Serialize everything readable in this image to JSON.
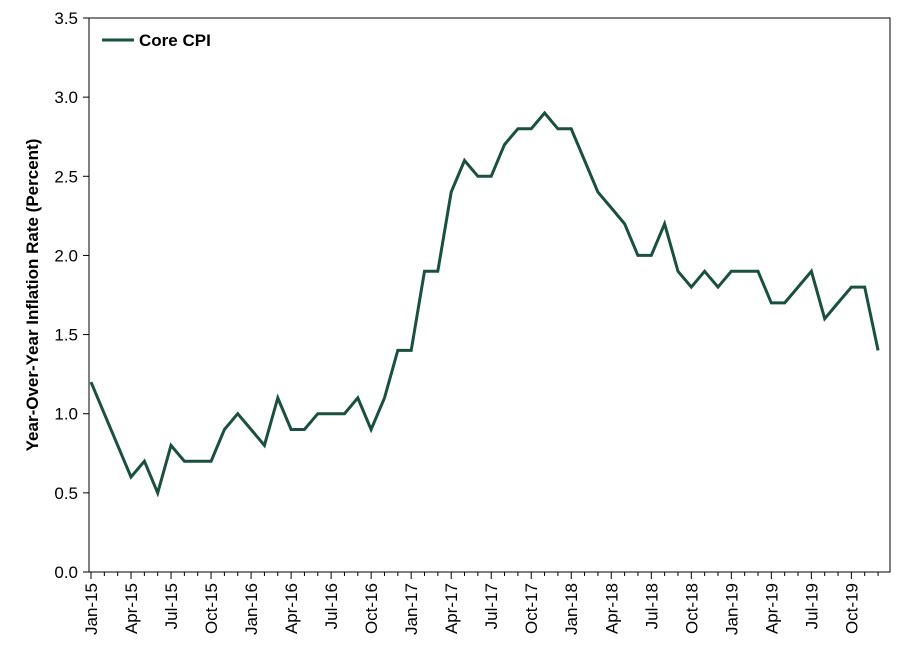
{
  "chart_data": {
    "type": "line",
    "title": "",
    "ylabel": "Year-Over-Year Inflation Rate (Percent)",
    "xlabel": "",
    "ylim": [
      0,
      3.5
    ],
    "yticks": [
      "0.0",
      "0.5",
      "1.0",
      "1.5",
      "2.0",
      "2.5",
      "3.0",
      "3.5"
    ],
    "xtick_labels": [
      "Jan-15",
      "Apr-15",
      "Jul-15",
      "Oct-15",
      "Jan-16",
      "Apr-16",
      "Jul-16",
      "Oct-16",
      "Jan-17",
      "Apr-17",
      "Jul-17",
      "Oct-17",
      "Jan-18",
      "Apr-18",
      "Jul-18",
      "Oct-18",
      "Jan-19",
      "Apr-19",
      "Jul-19",
      "Oct-19"
    ],
    "grid": false,
    "legend_position": "top-left",
    "series": [
      {
        "name": "Core CPI",
        "color": "#1a5040",
        "x": [
          "Jan-15",
          "Feb-15",
          "Mar-15",
          "Apr-15",
          "May-15",
          "Jun-15",
          "Jul-15",
          "Aug-15",
          "Sep-15",
          "Oct-15",
          "Nov-15",
          "Dec-15",
          "Jan-16",
          "Feb-16",
          "Mar-16",
          "Apr-16",
          "May-16",
          "Jun-16",
          "Jul-16",
          "Aug-16",
          "Sep-16",
          "Oct-16",
          "Nov-16",
          "Dec-16",
          "Jan-17",
          "Feb-17",
          "Mar-17",
          "Apr-17",
          "May-17",
          "Jun-17",
          "Jul-17",
          "Aug-17",
          "Sep-17",
          "Oct-17",
          "Nov-17",
          "Dec-17",
          "Jan-18",
          "Feb-18",
          "Mar-18",
          "Apr-18",
          "May-18",
          "Jun-18",
          "Jul-18",
          "Aug-18",
          "Sep-18",
          "Oct-18",
          "Nov-18",
          "Dec-18",
          "Jan-19",
          "Feb-19",
          "Mar-19",
          "Apr-19",
          "May-19",
          "Jun-19",
          "Jul-19",
          "Aug-19",
          "Sep-19",
          "Oct-19",
          "Nov-19",
          "Dec-19"
        ],
        "values": [
          1.2,
          1.0,
          0.8,
          0.6,
          0.7,
          0.5,
          0.8,
          0.7,
          0.7,
          0.7,
          0.9,
          1.0,
          0.9,
          0.8,
          1.1,
          0.9,
          0.9,
          1.0,
          1.0,
          1.0,
          1.1,
          0.9,
          1.1,
          1.4,
          1.4,
          1.9,
          1.9,
          2.4,
          2.6,
          2.5,
          2.5,
          2.7,
          2.8,
          2.8,
          2.9,
          2.8,
          2.8,
          2.6,
          2.4,
          2.3,
          2.2,
          2.0,
          2.0,
          2.2,
          1.9,
          1.8,
          1.9,
          1.8,
          1.9,
          1.9,
          1.9,
          1.7,
          1.7,
          1.8,
          1.9,
          1.6,
          1.7,
          1.8,
          1.8,
          1.4
        ]
      }
    ]
  }
}
